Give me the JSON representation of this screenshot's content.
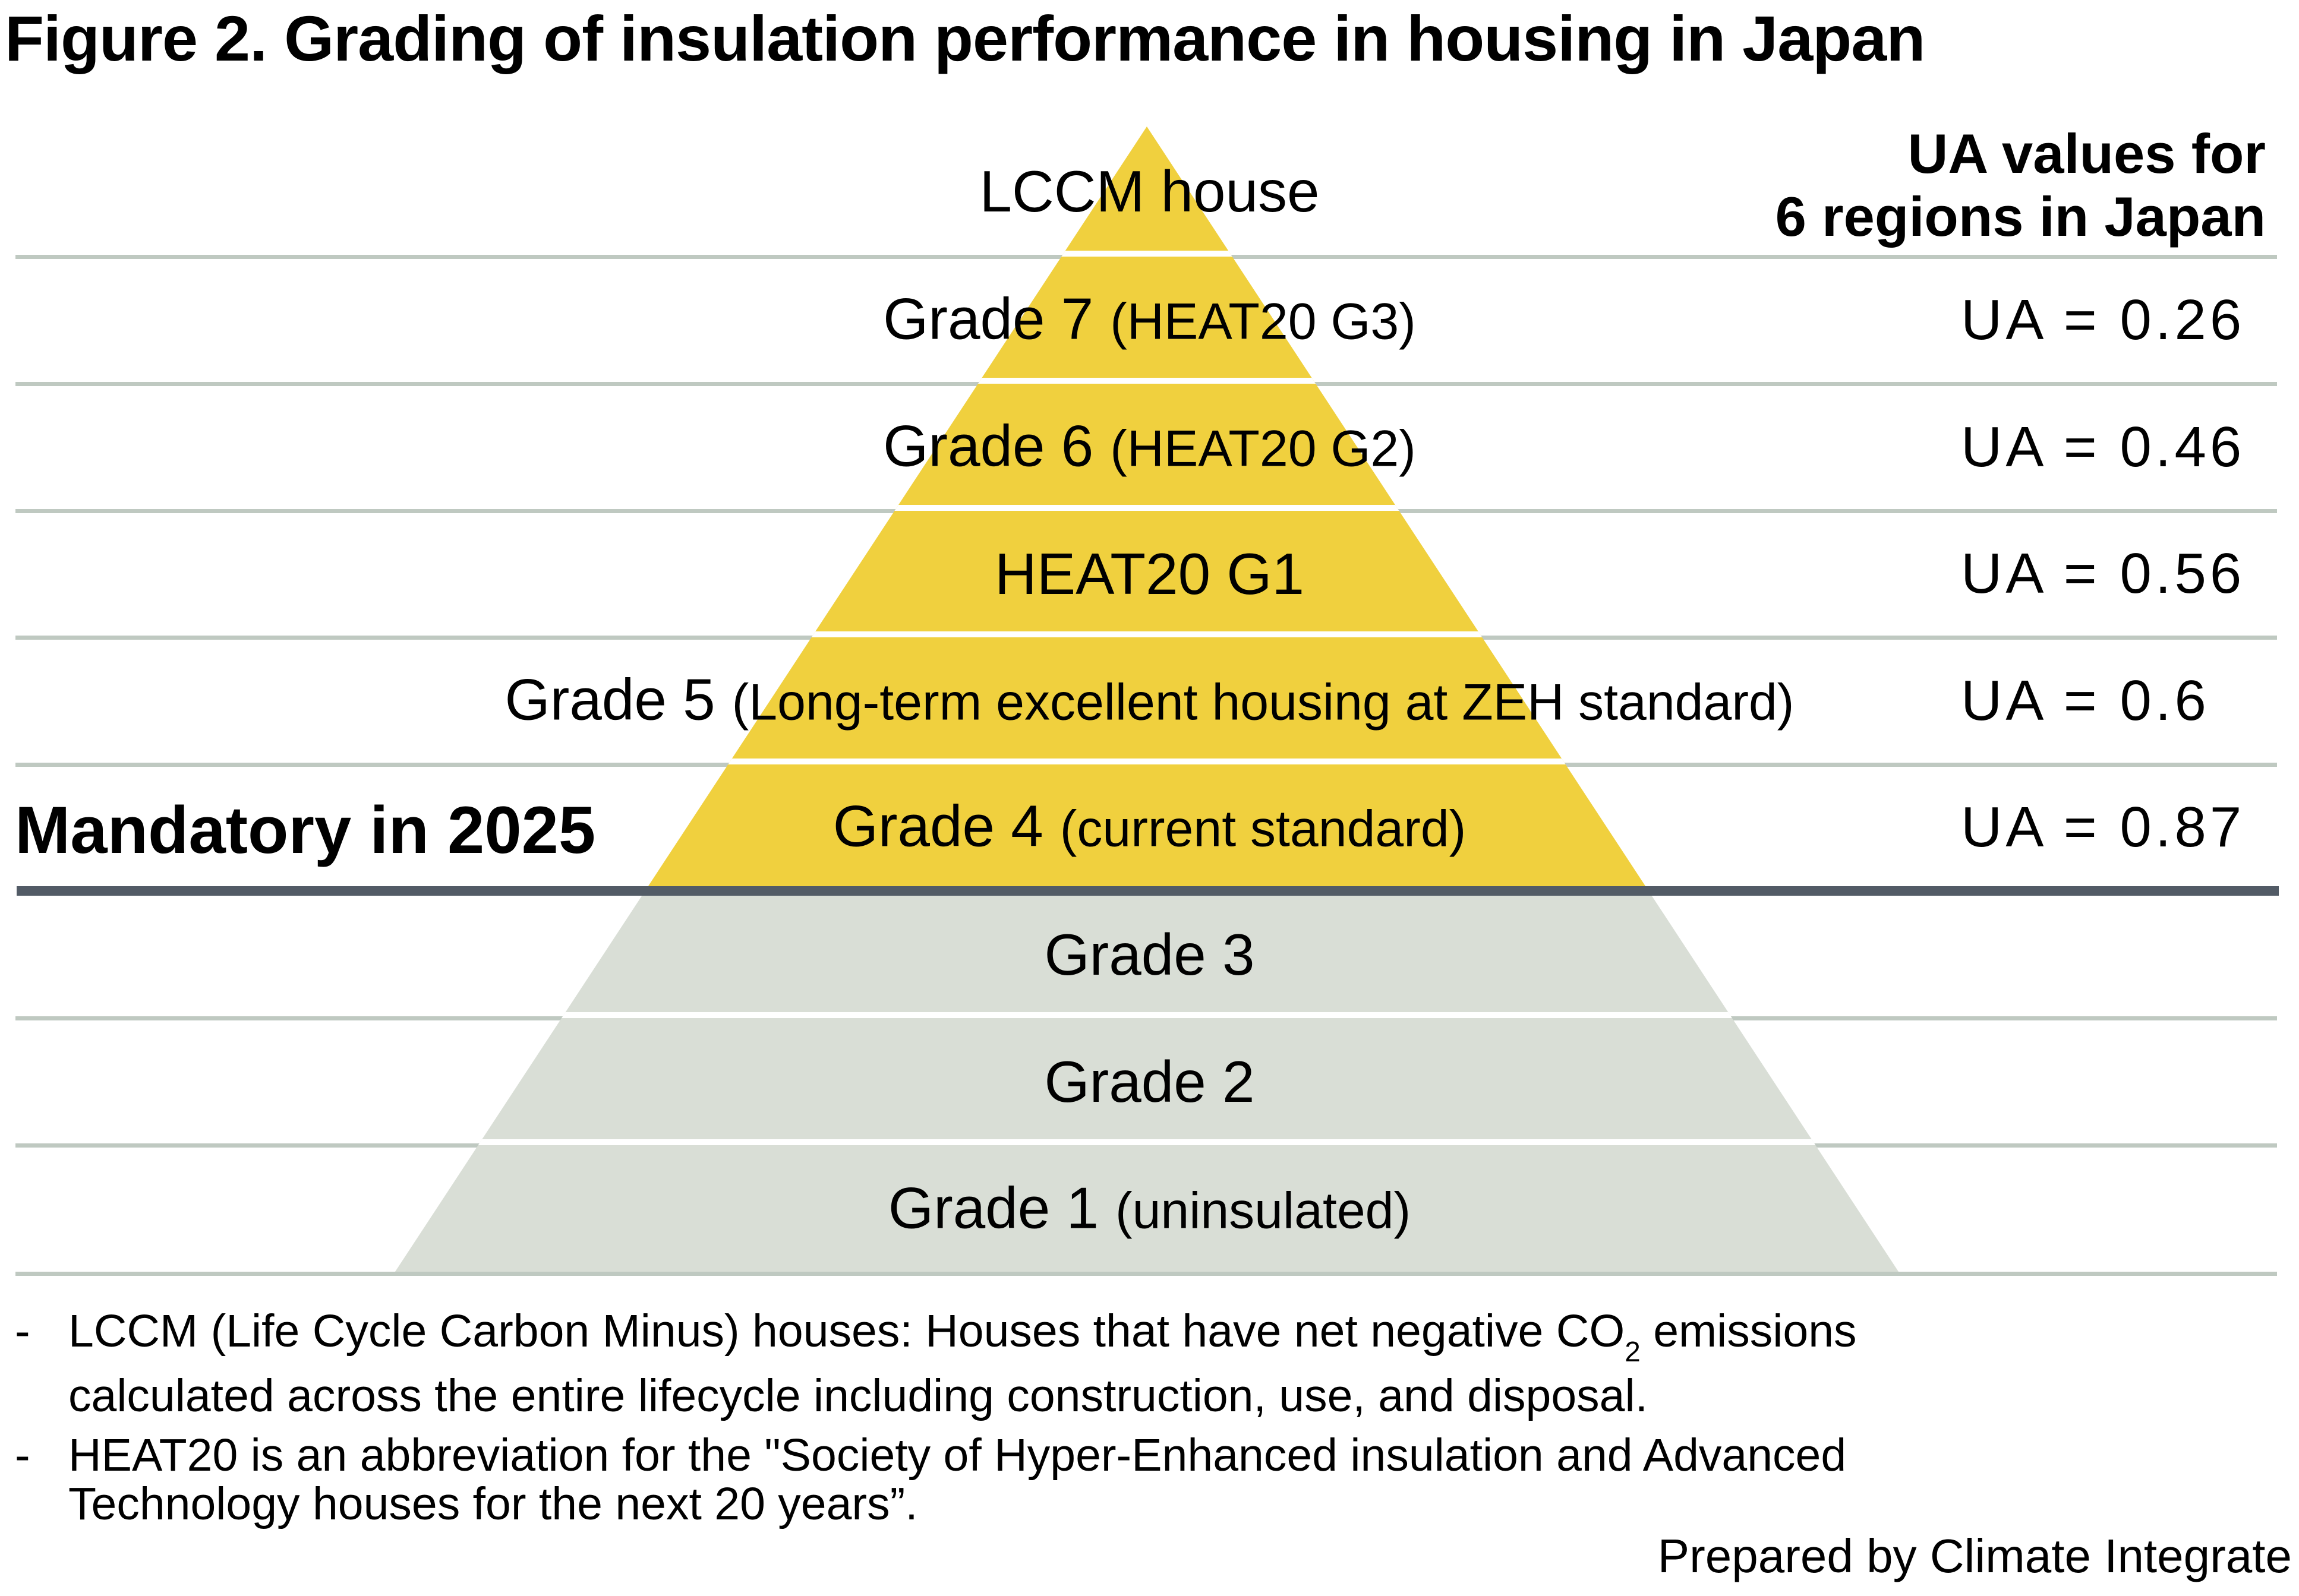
{
  "title": "Figure 2. Grading of insulation performance in housing in Japan",
  "ua_header": {
    "line1": "UA values for",
    "line2": "6 regions in Japan"
  },
  "mandatory": {
    "label": "Mandatory in 2025"
  },
  "pyramid": {
    "rows": [
      {
        "label": "LCCM house",
        "sub": "",
        "ua": "",
        "zone": "yellow"
      },
      {
        "label": "Grade 7",
        "sub": "(HEAT20 G3)",
        "ua": "UA = 0.26",
        "zone": "yellow"
      },
      {
        "label": "Grade 6",
        "sub": "(HEAT20 G2)",
        "ua": "UA = 0.46",
        "zone": "yellow"
      },
      {
        "label": "HEAT20 G1",
        "sub": "",
        "ua": "UA = 0.56",
        "zone": "yellow"
      },
      {
        "label": "Grade 5",
        "sub": "(Long-term excellent housing at ZEH standard)",
        "ua": "UA = 0.6",
        "zone": "yellow"
      },
      {
        "label": "Grade 4",
        "sub": "(current standard)",
        "ua": "UA = 0.87",
        "zone": "yellow"
      },
      {
        "label": "Grade 3",
        "sub": "",
        "ua": "",
        "zone": "gray"
      },
      {
        "label": "Grade 2",
        "sub": "",
        "ua": "",
        "zone": "gray"
      },
      {
        "label": "Grade 1",
        "sub": "(uninsulated)",
        "ua": "",
        "zone": "gray"
      }
    ]
  },
  "footnotes": [
    {
      "marker": "-",
      "line1_pre": "LCCM (Life Cycle Carbon Minus) houses: Houses that have net negative CO",
      "line1_sub": "2",
      "line1_post": " emissions",
      "line2": "calculated across the entire lifecycle including construction, use, and disposal."
    },
    {
      "marker": "-",
      "line1": "HEAT20 is an abbreviation for the \"Society of Hyper-Enhanced insulation and Advanced",
      "line2": "Technology houses for the next 20 years”."
    }
  ],
  "credit": "Prepared by Climate Integrate",
  "colors": {
    "yellow": "#F0D03E",
    "gray": "#D9DED6",
    "separator_line": "#BFC9C1",
    "mandatory_line": "#525B66"
  }
}
